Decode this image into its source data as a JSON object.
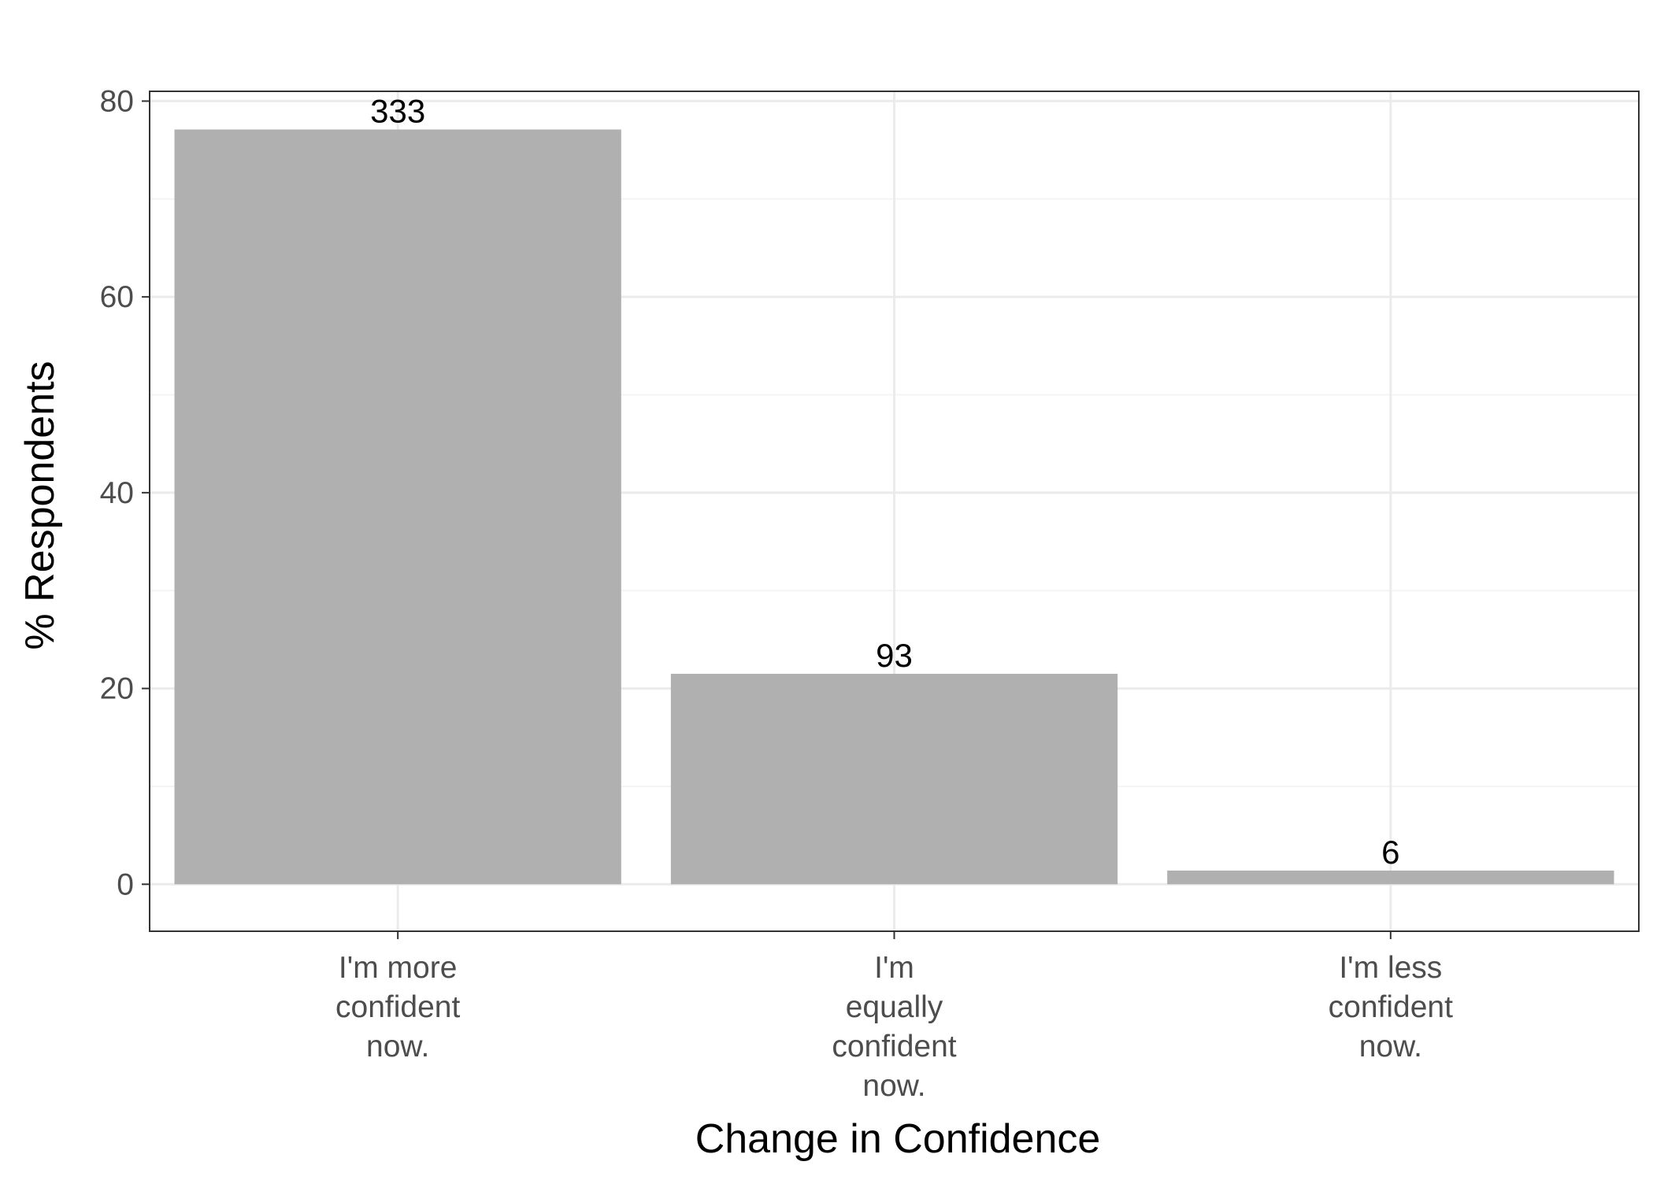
{
  "chart_data": {
    "type": "bar",
    "categories": [
      [
        "I'm more",
        "confident",
        "now."
      ],
      [
        "I'm",
        "equally",
        "confident",
        "now."
      ],
      [
        "I'm less",
        "confident",
        "now."
      ]
    ],
    "values": [
      77.1,
      21.5,
      1.4
    ],
    "data_labels": [
      "333",
      "93",
      "6"
    ],
    "title": "",
    "xlabel": "Change in Confidence",
    "ylabel": "% Respondents",
    "ylim": [
      -4.8,
      81.0
    ],
    "yticks": [
      0,
      20,
      40,
      60,
      80
    ],
    "grid": true,
    "legend": "none",
    "colors": {
      "bar": "#b0b0b0",
      "grid_major": "#ebebeb",
      "grid_minor": "#f4f4f4",
      "panel_border": "#333333",
      "tick": "#333333"
    }
  }
}
